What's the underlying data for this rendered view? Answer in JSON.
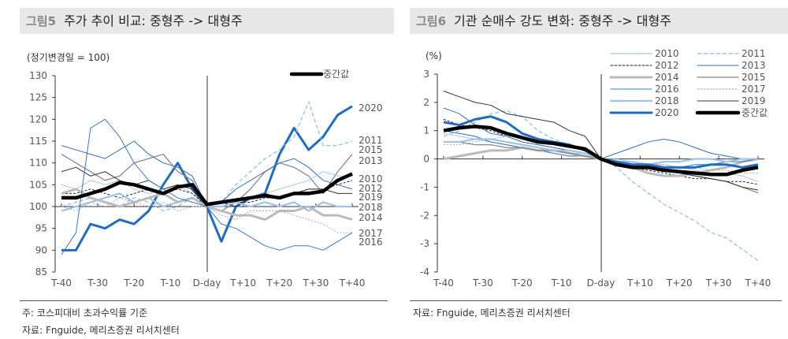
{
  "left": {
    "fig": "그림5",
    "title": "주가 추이 비교: 중형주 -> 대형주",
    "unit": "(정기변경일 = 100)",
    "note": "주: 코스피대비 초과수익률 기준",
    "source": "자료: Fnguide, 메리츠증권 리서치센터"
  },
  "right": {
    "fig": "그림6",
    "title": "기관 순매수 강도 변화: 중형주 -> 대형주",
    "unit": "(%)",
    "source": "자료: Fnguide, 메리츠증권 리서치센터"
  },
  "chart_data": [
    {
      "type": "line",
      "title": "주가 추이 비교: 중형주 -> 대형주",
      "ylabel": "(정기변경일 = 100)",
      "ylim": [
        85,
        130
      ],
      "yticks": [
        85,
        90,
        95,
        100,
        105,
        110,
        115,
        120,
        125,
        130
      ],
      "xticks": [
        "T-40",
        "T-30",
        "T-20",
        "T-10",
        "D-day",
        "T+10",
        "T+20",
        "T+30",
        "T+40"
      ],
      "x": [
        -40,
        -36,
        -32,
        -28,
        -24,
        -20,
        -16,
        -12,
        -8,
        -4,
        0,
        4,
        8,
        12,
        16,
        20,
        24,
        28,
        32,
        36,
        40
      ],
      "legend": "top-right",
      "legend_entries": [
        "중간값"
      ],
      "series": [
        {
          "name": "2020",
          "values": [
            90,
            90,
            96,
            95,
            97,
            96,
            99,
            105,
            110,
            104,
            100,
            92,
            100,
            102,
            103,
            112,
            118,
            113,
            116,
            121,
            123
          ]
        },
        {
          "name": "2011",
          "values": [
            100,
            101,
            102,
            101,
            100,
            102,
            101,
            99,
            100,
            102,
            100,
            101,
            105,
            108,
            111,
            113,
            116,
            124,
            114,
            114,
            115
          ]
        },
        {
          "name": "2015",
          "values": [
            112,
            110,
            108,
            106,
            107,
            110,
            111,
            112,
            108,
            106,
            100,
            99,
            101,
            104,
            108,
            110,
            109,
            107,
            103,
            108,
            112
          ]
        },
        {
          "name": "2013",
          "values": [
            114,
            113,
            112,
            111,
            113,
            115,
            112,
            110,
            109,
            107,
            100,
            101,
            104,
            106,
            108,
            110,
            111,
            109,
            106,
            105,
            104
          ]
        },
        {
          "name": "2010",
          "values": [
            105,
            104,
            106,
            105,
            106,
            104,
            103,
            104,
            105,
            103,
            100,
            101,
            101,
            102,
            103,
            104,
            105,
            106,
            108,
            107,
            107
          ]
        },
        {
          "name": "2012",
          "values": [
            103,
            103,
            104,
            103,
            102,
            103,
            104,
            103,
            104,
            103,
            100,
            100,
            101,
            101,
            102,
            102,
            103,
            104,
            104,
            105,
            106
          ]
        },
        {
          "name": "2019",
          "values": [
            108,
            109,
            107,
            108,
            106,
            105,
            106,
            104,
            105,
            104,
            100,
            101,
            100,
            102,
            103,
            102,
            103,
            104,
            104,
            103,
            103
          ]
        },
        {
          "name": "2018",
          "values": [
            99,
            100,
            101,
            102,
            103,
            101,
            102,
            100,
            101,
            102,
            100,
            100,
            101,
            100,
            101,
            100,
            101,
            99,
            101,
            100,
            100
          ]
        },
        {
          "name": "2014",
          "values": [
            103,
            104,
            102,
            101,
            100,
            101,
            102,
            103,
            101,
            102,
            100,
            99,
            98,
            98,
            97,
            99,
            99,
            100,
            98,
            98,
            97
          ]
        },
        {
          "name": "2017",
          "values": [
            100,
            99,
            101,
            100,
            102,
            101,
            100,
            101,
            99,
            100,
            100,
            98,
            97,
            99,
            99,
            99,
            98,
            97,
            96,
            94,
            94
          ]
        },
        {
          "name": "2016",
          "values": [
            89,
            94,
            118,
            120,
            116,
            110,
            106,
            104,
            102,
            101,
            100,
            96,
            95,
            93,
            91,
            90,
            91,
            91,
            90,
            92,
            94
          ]
        },
        {
          "name": "중간값",
          "values": [
            102,
            102,
            103,
            104,
            105.5,
            105,
            104,
            103,
            104.5,
            105,
            100.5,
            101,
            101.5,
            102,
            102.5,
            102,
            103,
            103,
            103.5,
            106,
            107.5
          ]
        }
      ]
    },
    {
      "type": "line",
      "title": "기관 순매수 강도 변화: 중형주 -> 대형주",
      "ylabel": "(%)",
      "ylim": [
        -4,
        3
      ],
      "yticks": [
        -4,
        -3,
        -2,
        -1,
        0,
        1,
        2,
        3
      ],
      "xticks": [
        "T-40",
        "T-30",
        "T-20",
        "T-10",
        "D-day",
        "T+10",
        "T+20",
        "T+30",
        "T+40"
      ],
      "x": [
        -40,
        -36,
        -32,
        -28,
        -24,
        -20,
        -16,
        -12,
        -8,
        -4,
        0,
        4,
        8,
        12,
        16,
        20,
        24,
        28,
        32,
        36,
        40
      ],
      "legend": "top-right",
      "series": [
        {
          "name": "2010",
          "values": [
            0.9,
            0.8,
            0.7,
            0.6,
            0.5,
            0.4,
            0.3,
            0.3,
            0.2,
            0.2,
            0,
            0,
            -0.1,
            -0.2,
            -0.2,
            -0.3,
            -0.4,
            -0.5,
            -0.5,
            -0.6,
            -0.8
          ]
        },
        {
          "name": "2011",
          "values": [
            0.8,
            1.0,
            1.3,
            1.6,
            1.7,
            1.5,
            1.0,
            0.7,
            0.5,
            0.3,
            0,
            -0.3,
            -0.8,
            -1.2,
            -1.6,
            -1.9,
            -2.2,
            -2.6,
            -2.8,
            -3.2,
            -3.6
          ]
        },
        {
          "name": "2012",
          "values": [
            1.4,
            1.2,
            1.1,
            1.0,
            0.8,
            0.6,
            0.5,
            0.4,
            0.3,
            0.2,
            0,
            -0.2,
            -0.3,
            -0.4,
            -0.5,
            -0.6,
            -0.7,
            -0.7,
            -0.8,
            -0.8,
            -0.9
          ]
        },
        {
          "name": "2013",
          "values": [
            1.0,
            0.9,
            0.8,
            0.6,
            0.5,
            0.4,
            0.3,
            0.2,
            0.1,
            0.1,
            0,
            0.2,
            0.4,
            0.6,
            0.7,
            0.6,
            0.4,
            0.2,
            0.1,
            0.0,
            0.0
          ]
        },
        {
          "name": "2014",
          "values": [
            0.0,
            0.1,
            0.2,
            0.3,
            0.3,
            0.4,
            0.3,
            0.3,
            0.2,
            0.1,
            0,
            -0.1,
            -0.3,
            -0.5,
            -0.6,
            -0.6,
            -0.5,
            -0.4,
            -0.3,
            -0.1,
            0.0
          ]
        },
        {
          "name": "2015",
          "values": [
            0.6,
            0.6,
            0.5,
            0.5,
            0.4,
            0.4,
            0.3,
            0.3,
            0.2,
            0.1,
            0,
            -0.1,
            -0.2,
            -0.3,
            -0.4,
            -0.5,
            -0.6,
            -0.7,
            -0.8,
            -1.0,
            -1.2
          ]
        },
        {
          "name": "2016",
          "values": [
            1.8,
            1.6,
            1.2,
            0.9,
            0.8,
            0.6,
            0.5,
            0.4,
            0.3,
            0.2,
            0,
            -0.1,
            -0.2,
            -0.2,
            -0.3,
            -0.3,
            -0.2,
            -0.2,
            -0.1,
            -0.1,
            0.0
          ]
        },
        {
          "name": "2017",
          "values": [
            0.5,
            0.5,
            0.6,
            0.7,
            0.8,
            0.8,
            0.6,
            0.5,
            0.4,
            0.3,
            0,
            -0.1,
            -0.1,
            -0.2,
            -0.2,
            -0.3,
            -0.3,
            -0.4,
            -0.4,
            -0.5,
            -0.5
          ]
        },
        {
          "name": "2018",
          "values": [
            0.6,
            0.6,
            0.7,
            0.7,
            0.6,
            0.5,
            0.4,
            0.3,
            0.3,
            0.2,
            0,
            -0.1,
            -0.1,
            -0.2,
            -0.1,
            -0.1,
            0,
            0,
            -0.1,
            0,
            0
          ]
        },
        {
          "name": "2019",
          "values": [
            2.4,
            2.2,
            2.0,
            1.9,
            1.6,
            1.5,
            1.4,
            1.3,
            1.0,
            0.8,
            0,
            -0.2,
            -0.3,
            -0.3,
            -0.4,
            -0.5,
            -0.6,
            -0.7,
            -0.8,
            -1.0,
            -1.1
          ]
        },
        {
          "name": "2020",
          "values": [
            1.3,
            1.2,
            1.4,
            1.5,
            1.3,
            0.9,
            0.7,
            0.6,
            0.5,
            0.3,
            0,
            -0.1,
            -0.2,
            -0.2,
            -0.3,
            -0.3,
            -0.3,
            -0.2,
            -0.2,
            -0.3,
            -0.2
          ]
        },
        {
          "name": "중간값",
          "values": [
            1.0,
            1.1,
            1.15,
            1.1,
            0.9,
            0.75,
            0.6,
            0.55,
            0.45,
            0.35,
            0,
            -0.2,
            -0.3,
            -0.3,
            -0.4,
            -0.45,
            -0.5,
            -0.55,
            -0.55,
            -0.4,
            -0.3
          ]
        }
      ]
    }
  ]
}
